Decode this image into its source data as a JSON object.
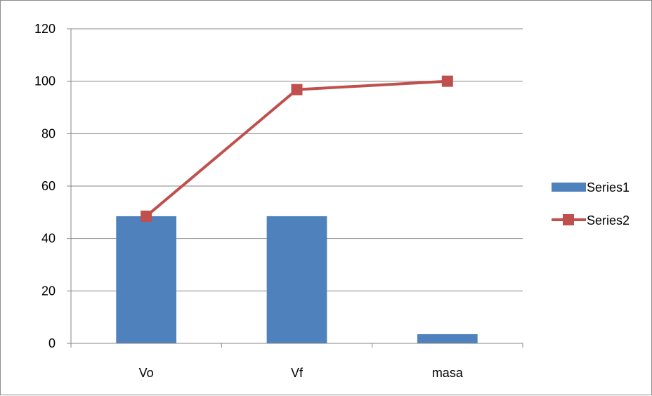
{
  "chart_data": {
    "type": "bar",
    "categories": [
      "Vo",
      "Vf",
      "masa"
    ],
    "series": [
      {
        "name": "Series1",
        "type": "bar",
        "values": [
          48.5,
          48.5,
          3.5
        ],
        "color": "#4f81bd"
      },
      {
        "name": "Series2",
        "type": "line",
        "values": [
          48.5,
          96.8,
          100
        ],
        "color": "#c0504d",
        "marker": "square"
      }
    ],
    "y_ticks": [
      "0",
      "20",
      "40",
      "60",
      "80",
      "100",
      "120"
    ],
    "ylim": [
      0,
      120
    ],
    "grid": true,
    "legend_position": "right",
    "title": "",
    "xlabel": "",
    "ylabel": ""
  }
}
